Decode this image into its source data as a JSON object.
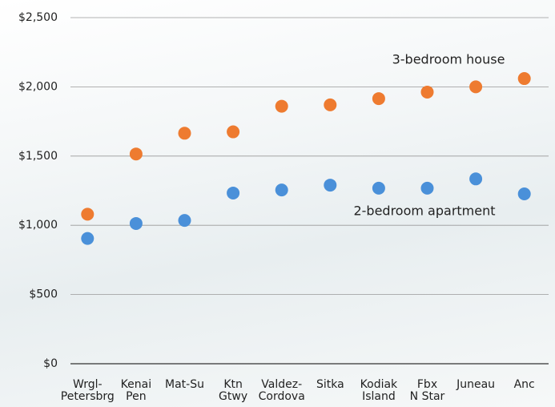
{
  "chart_data": {
    "type": "scatter",
    "categories": [
      "Wrgl-\nPetersbrg",
      "Kenai\nPen",
      "Mat-Su",
      "Ktn\nGtwy",
      "Valdez-\nCordova",
      "Sitka",
      "Kodiak\nIsland",
      "Fbx\nN Star",
      "Juneau",
      "Anc"
    ],
    "series": [
      {
        "name": "3-bedroom house",
        "color": "#ee7b30",
        "values": [
          1080,
          1515,
          1665,
          1675,
          1860,
          1870,
          1915,
          1962,
          2000,
          2060
        ]
      },
      {
        "name": "2-bedroom apartment",
        "color": "#4a90d9",
        "values": [
          905,
          1013,
          1035,
          1233,
          1255,
          1290,
          1268,
          1268,
          1335,
          1227
        ]
      }
    ],
    "ylim": [
      0,
      2500
    ],
    "yticks": [
      {
        "value": 0,
        "label": "$0"
      },
      {
        "value": 500,
        "label": "$500"
      },
      {
        "value": 1000,
        "label": "$1,000"
      },
      {
        "value": 1500,
        "label": "$1,500"
      },
      {
        "value": 2000,
        "label": "$2,000"
      },
      {
        "value": 2500,
        "label": "$2,500"
      }
    ],
    "grid": true
  }
}
